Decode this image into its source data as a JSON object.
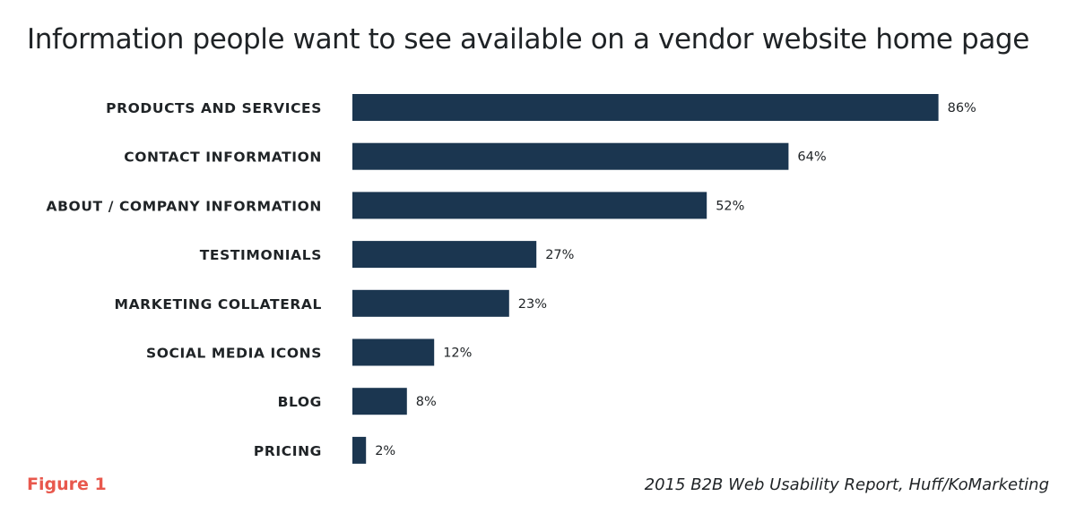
{
  "figure_label": "Figure 1",
  "source_note": "2015 B2B Web Usability Report, Huff/KoMarketing",
  "colors": {
    "bar": "#1b3650",
    "figure_label": "#e8584d",
    "text": "#1f2326"
  },
  "chart_data": {
    "type": "bar",
    "orientation": "horizontal",
    "title": "Information people want to see available on a vendor website home page",
    "xlabel": "",
    "ylabel": "",
    "xlim": [
      0,
      100
    ],
    "grid": false,
    "categories": [
      "PRODUCTS AND SERVICES",
      "CONTACT INFORMATION",
      "ABOUT / COMPANY INFORMATION",
      "TESTIMONIALS",
      "MARKETING COLLATERAL",
      "SOCIAL MEDIA ICONS",
      "BLOG",
      "PRICING"
    ],
    "values": [
      86,
      64,
      52,
      27,
      23,
      12,
      8,
      2
    ],
    "value_labels": [
      "86%",
      "64%",
      "52%",
      "27%",
      "23%",
      "12%",
      "8%",
      "2%"
    ]
  }
}
